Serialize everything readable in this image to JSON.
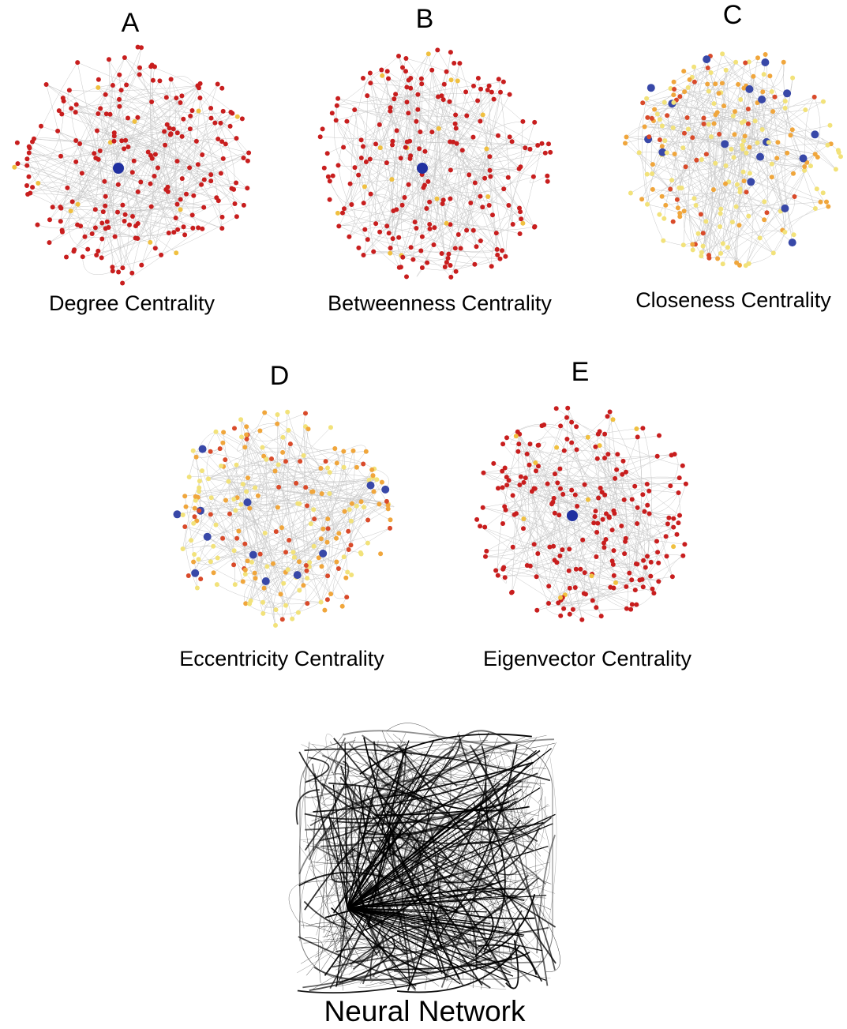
{
  "panels": [
    {
      "label": "A",
      "caption": "Degree Centrality"
    },
    {
      "label": "B",
      "caption": "Betweenness Centrality"
    },
    {
      "label": "C",
      "caption": "Closeness Centrality"
    },
    {
      "label": "D",
      "caption": "Eccentricity Centrality"
    },
    {
      "label": "E",
      "caption": "Eigenvector Centrality"
    }
  ],
  "neural_network": {
    "caption": "Neural Network"
  }
}
